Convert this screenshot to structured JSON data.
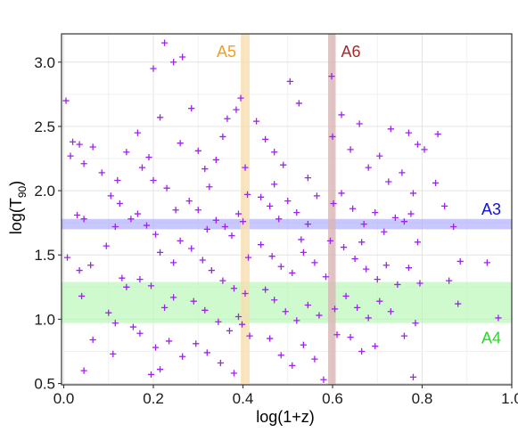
{
  "chart_data": {
    "type": "scatter",
    "xlabel": "log(1+z)",
    "ylabel": {
      "base": "log(T",
      "sub": "90",
      "close": ")"
    },
    "xlim": [
      -0.005,
      1.0
    ],
    "ylim": [
      0.49,
      3.22
    ],
    "xticks": [
      0.0,
      0.2,
      0.4,
      0.6,
      0.8,
      1.0
    ],
    "xtick_labels": [
      "0.0",
      "0.2",
      "0.4",
      "0.6",
      "0.8",
      "1.0"
    ],
    "yticks": [
      0.5,
      1.0,
      1.5,
      2.0,
      2.5,
      3.0
    ],
    "ytick_labels": [
      "0.5",
      "1.0",
      "1.5",
      "2.0",
      "2.5",
      "3.0"
    ],
    "grid": true,
    "marker": "+",
    "marker_color": "#a020f0",
    "bands": [
      {
        "label": "A3",
        "orientation": "horizontal",
        "range": [
          1.7,
          1.78
        ],
        "color": "#aaaaff",
        "label_color": "#1010e0",
        "label_position": "top-right"
      },
      {
        "label": "A4",
        "orientation": "horizontal",
        "range": [
          0.97,
          1.29
        ],
        "color": "#b4f7b4",
        "label_color": "#22dd22",
        "label_position": "bottom-right"
      },
      {
        "label": "A5",
        "orientation": "vertical",
        "range": [
          0.395,
          0.415
        ],
        "color": "#f8dfb0",
        "label_color": "#f0a020",
        "label_position": "top-left"
      },
      {
        "label": "A6",
        "orientation": "vertical",
        "range": [
          0.59,
          0.607
        ],
        "color": "#d9b5b5",
        "label_color": "#a52a2a",
        "label_position": "top-right"
      }
    ],
    "points": [
      [
        0.005,
        2.7
      ],
      [
        0.02,
        2.38
      ],
      [
        0.035,
        2.36
      ],
      [
        0.015,
        2.27
      ],
      [
        0.045,
        2.21
      ],
      [
        0.065,
        2.34
      ],
      [
        0.03,
        1.81
      ],
      [
        0.045,
        1.78
      ],
      [
        0.008,
        1.48
      ],
      [
        0.035,
        1.38
      ],
      [
        0.04,
        1.18
      ],
      [
        0.06,
        1.42
      ],
      [
        0.065,
        0.84
      ],
      [
        0.045,
        0.6
      ],
      [
        0.085,
        2.14
      ],
      [
        0.105,
        1.96
      ],
      [
        0.12,
        2.08
      ],
      [
        0.125,
        1.9
      ],
      [
        0.115,
        1.72
      ],
      [
        0.095,
        1.57
      ],
      [
        0.13,
        1.32
      ],
      [
        0.14,
        1.25
      ],
      [
        0.115,
        0.97
      ],
      [
        0.1,
        1.05
      ],
      [
        0.11,
        0.73
      ],
      [
        0.155,
        0.94
      ],
      [
        0.17,
        0.89
      ],
      [
        0.2,
        2.95
      ],
      [
        0.225,
        3.15
      ],
      [
        0.245,
        3.0
      ],
      [
        0.265,
        3.04
      ],
      [
        0.165,
        2.45
      ],
      [
        0.215,
        2.57
      ],
      [
        0.175,
        2.18
      ],
      [
        0.19,
        2.26
      ],
      [
        0.2,
        2.08
      ],
      [
        0.23,
        2.02
      ],
      [
        0.26,
        2.37
      ],
      [
        0.15,
        1.78
      ],
      [
        0.165,
        1.82
      ],
      [
        0.185,
        1.73
      ],
      [
        0.205,
        1.66
      ],
      [
        0.215,
        1.52
      ],
      [
        0.245,
        1.44
      ],
      [
        0.26,
        1.61
      ],
      [
        0.17,
        1.31
      ],
      [
        0.195,
        1.26
      ],
      [
        0.225,
        1.09
      ],
      [
        0.245,
        1.17
      ],
      [
        0.205,
        0.78
      ],
      [
        0.195,
        0.57
      ],
      [
        0.215,
        0.61
      ],
      [
        0.235,
        0.83
      ],
      [
        0.265,
        0.71
      ],
      [
        0.285,
        2.64
      ],
      [
        0.3,
        2.31
      ],
      [
        0.315,
        2.17
      ],
      [
        0.325,
        2.03
      ],
      [
        0.34,
        2.24
      ],
      [
        0.365,
        2.56
      ],
      [
        0.385,
        2.63
      ],
      [
        0.28,
        1.92
      ],
      [
        0.3,
        1.85
      ],
      [
        0.32,
        1.7
      ],
      [
        0.34,
        1.77
      ],
      [
        0.36,
        1.72
      ],
      [
        0.375,
        1.65
      ],
      [
        0.39,
        1.82
      ],
      [
        0.285,
        1.55
      ],
      [
        0.31,
        1.46
      ],
      [
        0.33,
        1.38
      ],
      [
        0.355,
        1.3
      ],
      [
        0.38,
        1.24
      ],
      [
        0.29,
        1.14
      ],
      [
        0.315,
        1.07
      ],
      [
        0.345,
        0.98
      ],
      [
        0.37,
        0.91
      ],
      [
        0.39,
        1.02
      ],
      [
        0.295,
        0.81
      ],
      [
        0.32,
        0.74
      ],
      [
        0.35,
        0.66
      ],
      [
        0.38,
        0.58
      ],
      [
        0.395,
        2.72
      ],
      [
        0.405,
        2.18
      ],
      [
        0.41,
        1.97
      ],
      [
        0.4,
        1.76
      ],
      [
        0.412,
        1.48
      ],
      [
        0.405,
        1.2
      ],
      [
        0.398,
        0.96
      ],
      [
        0.415,
        0.87
      ],
      [
        0.43,
        2.54
      ],
      [
        0.45,
        2.4
      ],
      [
        0.47,
        2.3
      ],
      [
        0.49,
        2.2
      ],
      [
        0.505,
        2.85
      ],
      [
        0.525,
        2.68
      ],
      [
        0.44,
        1.95
      ],
      [
        0.46,
        1.88
      ],
      [
        0.48,
        1.78
      ],
      [
        0.5,
        1.92
      ],
      [
        0.52,
        1.83
      ],
      [
        0.545,
        1.74
      ],
      [
        0.565,
        1.96
      ],
      [
        0.44,
        1.58
      ],
      [
        0.465,
        1.49
      ],
      [
        0.485,
        1.41
      ],
      [
        0.51,
        1.36
      ],
      [
        0.535,
        1.52
      ],
      [
        0.56,
        1.44
      ],
      [
        0.585,
        1.33
      ],
      [
        0.45,
        1.23
      ],
      [
        0.47,
        1.15
      ],
      [
        0.495,
        1.06
      ],
      [
        0.52,
        0.99
      ],
      [
        0.545,
        1.11
      ],
      [
        0.57,
        1.03
      ],
      [
        0.46,
        0.85
      ],
      [
        0.485,
        0.72
      ],
      [
        0.51,
        0.64
      ],
      [
        0.535,
        0.8
      ],
      [
        0.56,
        0.69
      ],
      [
        0.58,
        0.53
      ],
      [
        0.598,
        2.89
      ],
      [
        0.6,
        2.42
      ],
      [
        0.602,
        1.9
      ],
      [
        0.595,
        1.61
      ],
      [
        0.605,
        1.08
      ],
      [
        0.61,
        0.88
      ],
      [
        0.62,
        2.59
      ],
      [
        0.64,
        2.32
      ],
      [
        0.66,
        2.52
      ],
      [
        0.68,
        2.18
      ],
      [
        0.705,
        2.27
      ],
      [
        0.725,
        2.07
      ],
      [
        0.62,
        1.98
      ],
      [
        0.645,
        1.86
      ],
      [
        0.67,
        1.74
      ],
      [
        0.695,
        1.83
      ],
      [
        0.715,
        1.68
      ],
      [
        0.74,
        1.79
      ],
      [
        0.625,
        1.56
      ],
      [
        0.65,
        1.47
      ],
      [
        0.675,
        1.39
      ],
      [
        0.7,
        1.31
      ],
      [
        0.72,
        1.42
      ],
      [
        0.745,
        1.27
      ],
      [
        0.63,
        1.18
      ],
      [
        0.655,
        1.09
      ],
      [
        0.68,
        1.01
      ],
      [
        0.705,
        1.14
      ],
      [
        0.73,
        1.06
      ],
      [
        0.64,
        0.86
      ],
      [
        0.665,
        0.75
      ],
      [
        0.695,
        0.79
      ],
      [
        0.73,
        2.48
      ],
      [
        0.77,
        2.45
      ],
      [
        0.79,
        2.36
      ],
      [
        0.755,
        2.14
      ],
      [
        0.78,
        1.98
      ],
      [
        0.76,
        1.76
      ],
      [
        0.775,
        1.82
      ],
      [
        0.79,
        1.6
      ],
      [
        0.77,
        1.4
      ],
      [
        0.795,
        1.28
      ],
      [
        0.785,
        0.97
      ],
      [
        0.76,
        0.87
      ],
      [
        0.805,
        2.32
      ],
      [
        0.83,
        2.06
      ],
      [
        0.85,
        1.88
      ],
      [
        0.87,
        1.72
      ],
      [
        0.885,
        1.45
      ],
      [
        0.86,
        1.3
      ],
      [
        0.88,
        1.12
      ],
      [
        0.835,
        2.44
      ],
      [
        0.945,
        1.44
      ],
      [
        0.97,
        1.01
      ],
      [
        0.78,
        0.55
      ],
      [
        0.53,
        1.62
      ],
      [
        0.47,
        2.05
      ],
      [
        0.355,
        2.42
      ],
      [
        0.25,
        1.85
      ],
      [
        0.14,
        2.3
      ],
      [
        0.545,
        2.1
      ],
      [
        0.665,
        1.6
      ]
    ]
  }
}
